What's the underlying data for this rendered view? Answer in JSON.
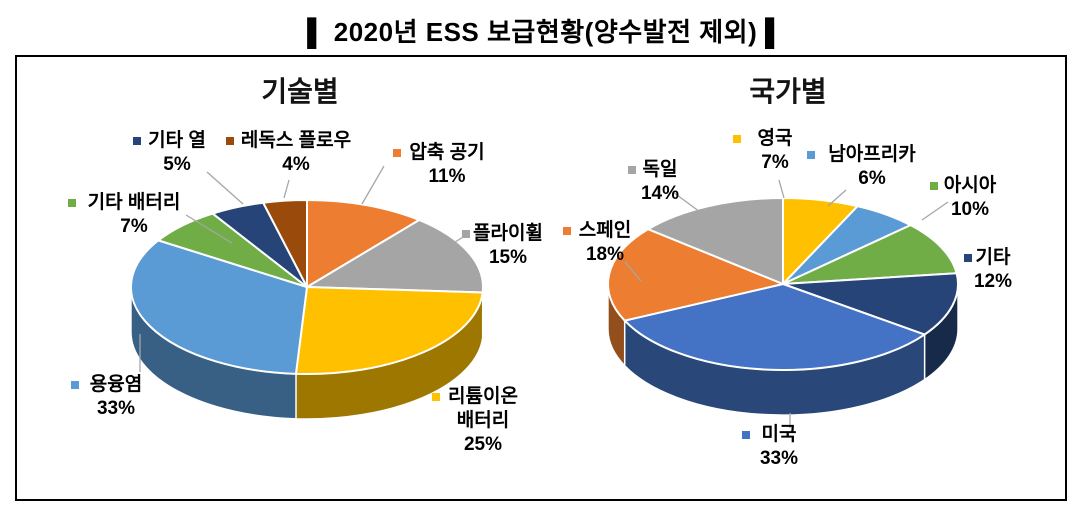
{
  "title": "▌ 2020년  ESS  보급현황(양수발전  제외) ▌",
  "chart_data": [
    {
      "type": "pie",
      "style": "3d",
      "title": "기술별",
      "unit": "%",
      "start_angle_deg": -90,
      "direction": "clockwise",
      "items": [
        {
          "name": "압축 공기",
          "value": 11,
          "percent_label": "11%",
          "color": "#ED7D31",
          "label_lines": [
            "압축 공기",
            "11%"
          ]
        },
        {
          "name": "플라이휠",
          "value": 15,
          "percent_label": "15%",
          "color": "#A5A5A5",
          "label_lines": [
            "플라이휠",
            "15%"
          ]
        },
        {
          "name": "리튬이온 배터리",
          "value": 25,
          "percent_label": "25%",
          "color": "#FFC000",
          "label_lines": [
            "리튬이온",
            "배터리",
            "25%"
          ]
        },
        {
          "name": "용융염",
          "value": 33,
          "percent_label": "33%",
          "color": "#5B9BD5",
          "label_lines": [
            "용융염",
            "33%"
          ]
        },
        {
          "name": "기타 배터리",
          "value": 7,
          "percent_label": "7%",
          "color": "#70AD47",
          "label_lines": [
            "기타 배터리",
            "7%"
          ]
        },
        {
          "name": "기타 열",
          "value": 5,
          "percent_label": "5%",
          "color": "#264478",
          "label_lines": [
            "기타 열",
            "5%"
          ]
        },
        {
          "name": "레독스 플로우",
          "value": 4,
          "percent_label": "4%",
          "color": "#9A4A0B",
          "label_lines": [
            "레독스 플로우",
            "4%"
          ]
        }
      ]
    },
    {
      "type": "pie",
      "style": "3d",
      "title": "국가별",
      "unit": "%",
      "start_angle_deg": -90,
      "direction": "clockwise",
      "items": [
        {
          "name": "영국",
          "value": 7,
          "percent_label": "7%",
          "color": "#FFC000",
          "label_lines": [
            "영국",
            "7%"
          ]
        },
        {
          "name": "남아프리카",
          "value": 6,
          "percent_label": "6%",
          "color": "#5B9BD5",
          "label_lines": [
            "남아프리카",
            "6%"
          ]
        },
        {
          "name": "아시아",
          "value": 10,
          "percent_label": "10%",
          "color": "#70AD47",
          "label_lines": [
            "아시아",
            "10%"
          ]
        },
        {
          "name": "기타",
          "value": 12,
          "percent_label": "12%",
          "color": "#264478",
          "label_lines": [
            "기타",
            "12%"
          ]
        },
        {
          "name": "미국",
          "value": 33,
          "percent_label": "33%",
          "color": "#4472C4",
          "label_lines": [
            "미국",
            "33%"
          ]
        },
        {
          "name": "스페인",
          "value": 18,
          "percent_label": "18%",
          "color": "#ED7D31",
          "label_lines": [
            "스페인",
            "18%"
          ]
        },
        {
          "name": "독일",
          "value": 14,
          "percent_label": "14%",
          "color": "#A5A5A5",
          "label_lines": [
            "독일",
            "14%"
          ]
        }
      ]
    }
  ],
  "leader_line_color": "#A6A6A6"
}
